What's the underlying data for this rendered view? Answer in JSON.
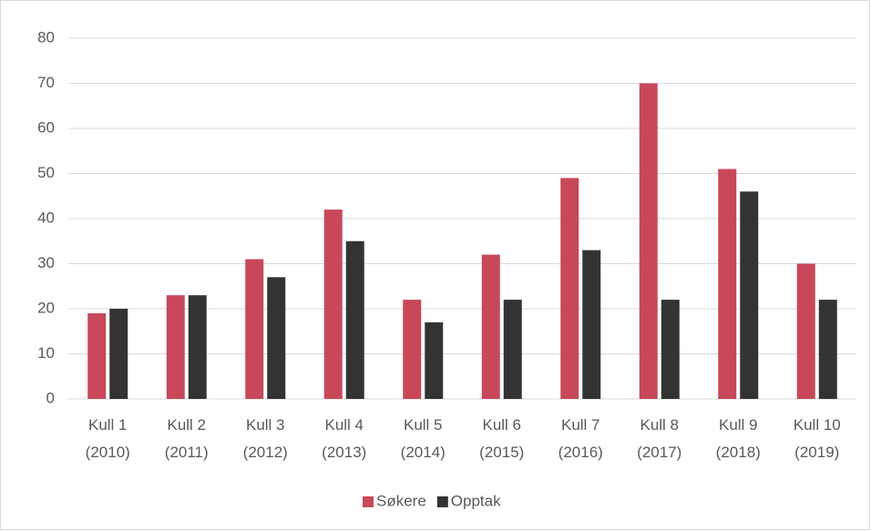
{
  "chart_data": {
    "type": "bar",
    "categories": [
      "Kull 1\n(2010)",
      "Kull 2\n(2011)",
      "Kull 3\n(2012)",
      "Kull 4\n(2013)",
      "Kull 5\n(2014)",
      "Kull 6\n(2015)",
      "Kull 7\n(2016)",
      "Kull 8\n(2017)",
      "Kull 9\n(2018)",
      "Kull 10\n(2019)"
    ],
    "series": [
      {
        "name": "Søkere",
        "color": "#c8485a",
        "values": [
          19,
          23,
          31,
          42,
          22,
          32,
          49,
          70,
          51,
          30
        ]
      },
      {
        "name": "Opptak",
        "color": "#333333",
        "values": [
          20,
          23,
          27,
          35,
          17,
          22,
          33,
          22,
          46,
          22
        ]
      }
    ],
    "ylim": [
      0,
      80
    ],
    "yticks": [
      0,
      10,
      20,
      30,
      40,
      50,
      60,
      70,
      80
    ],
    "grid": true,
    "legend": "bottom"
  }
}
